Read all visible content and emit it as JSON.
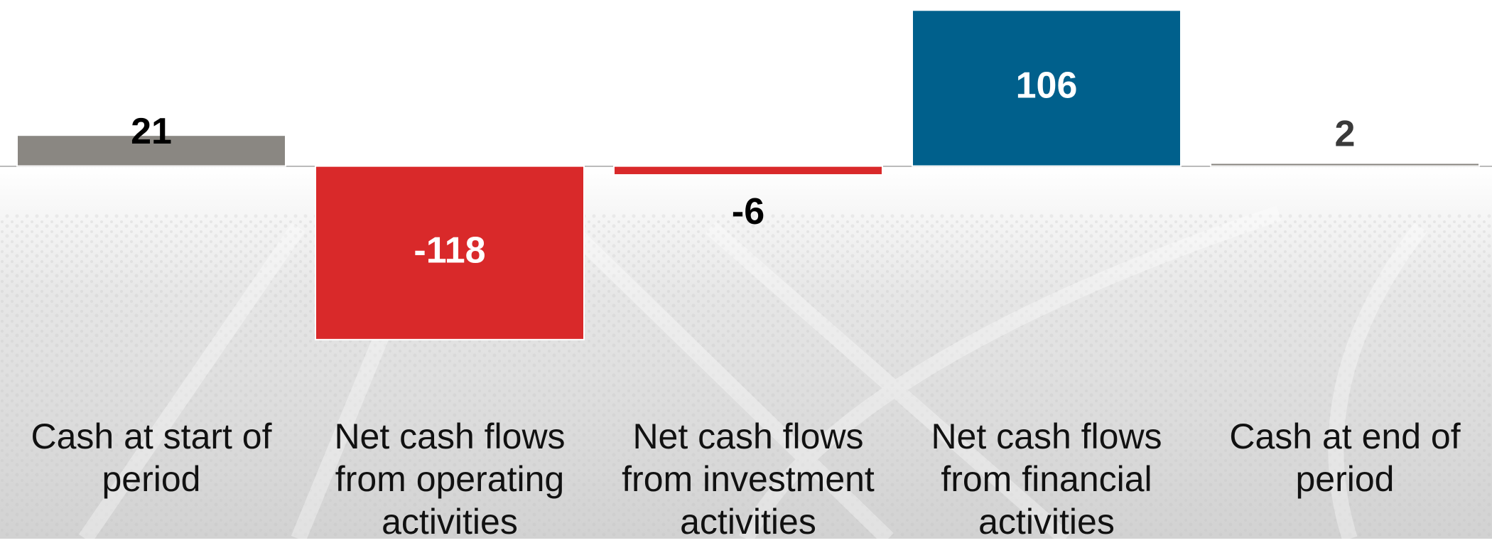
{
  "chart_data": {
    "type": "bar",
    "categories": [
      "Cash at start of period",
      "Net cash flows from operating activities",
      "Net cash flows from investment activities",
      "Net cash flows from financial activities",
      "Cash at end of period"
    ],
    "values": [
      21,
      -118,
      -6,
      106,
      2
    ],
    "colors": [
      "#8a8782",
      "#d9292a",
      "#d9292a",
      "#00608c",
      "#8a8782"
    ],
    "ylim": [
      -120,
      110
    ]
  }
}
